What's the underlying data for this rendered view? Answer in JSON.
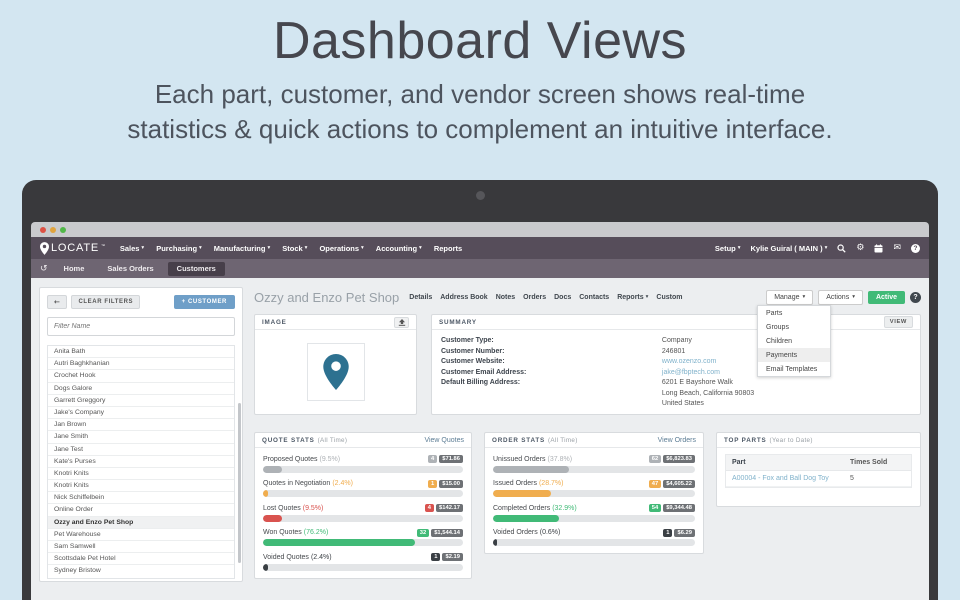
{
  "hero": {
    "title": "Dashboard Views",
    "subtitle_line1": "Each part, customer, and vendor screen shows real-time",
    "subtitle_line2": "statistics & quick actions to complement an intuitive interface."
  },
  "icons": {
    "caret": "▾",
    "undo": "↺",
    "gear": "⚙",
    "envelope": "✉",
    "back": "←",
    "question": "?",
    "trademark": "™"
  },
  "navbar": {
    "brand": "LOCATE",
    "menus": [
      "Sales",
      "Purchasing",
      "Manufacturing",
      "Stock",
      "Operations",
      "Accounting",
      "Reports"
    ],
    "setup": "Setup",
    "user": "Kylie Guiral ( MAIN )"
  },
  "breadcrumbs": {
    "items": [
      "Home",
      "Sales Orders",
      "Customers"
    ]
  },
  "sidebar": {
    "clear_filters": "CLEAR FILTERS",
    "add_customer": "+ CUSTOMER",
    "filter_placeholder": "Filter Name",
    "customers": [
      "Anita Bath",
      "Autri Baghkhanian",
      "Crochet Hook",
      "Dogs Galore",
      "Garrett Greggory",
      "Jake's Company",
      "Jan Brown",
      "Jane Smith",
      "Jane Test",
      "Kate's Purses",
      "Knotri Knits",
      "Knotri Knits",
      "Nick Schiffelbein",
      "Online Order",
      "Ozzy and Enzo Pet Shop",
      "Pet Warehouse",
      "Sam Samwell",
      "Scottsdale Pet Hotel",
      "Sydney Bristow"
    ],
    "selected_customer": "Ozzy and Enzo Pet Shop"
  },
  "customer_header": {
    "name": "Ozzy and Enzo Pet Shop",
    "tabs": [
      "Details",
      "Address Book",
      "Notes",
      "Orders",
      "Docs",
      "Contacts",
      "Reports",
      "Custom"
    ],
    "manage_label": "Manage",
    "actions_label": "Actions",
    "status": "Active",
    "manage_menu": [
      "Parts",
      "Groups",
      "Children",
      "Payments",
      "Email Templates"
    ]
  },
  "image_panel": {
    "title": "IMAGE"
  },
  "summary": {
    "title": "SUMMARY",
    "view_label": "VIEW",
    "rows": [
      {
        "label": "Customer Type:",
        "value": "Company"
      },
      {
        "label": "Customer Number:",
        "value": "246801"
      },
      {
        "label": "Customer Website:",
        "value": "www.ozenzo.com"
      },
      {
        "label": "Customer Email Address:",
        "value": "jake@fbptech.com"
      },
      {
        "label": "Default Billing Address:",
        "value": "6201 E Bayshore Walk",
        "line2": "Long Beach, California 90803",
        "line3": "United States"
      }
    ]
  },
  "quote_stats": {
    "title": "QUOTE STATS",
    "period": "(All Time)",
    "view_link": "View Quotes",
    "rows": [
      {
        "label": "Proposed Quotes",
        "pct_label": "(9.5%)",
        "pct": 9.5,
        "count": "4",
        "value": "$71.86",
        "color": "#aeb2b6"
      },
      {
        "label": "Quotes in Negotiation",
        "pct_label": "(2.4%)",
        "pct": 2.4,
        "count": "1",
        "value": "$15.00",
        "color": "#f0ad4e"
      },
      {
        "label": "Lost Quotes",
        "pct_label": "(9.5%)",
        "pct": 9.5,
        "count": "4",
        "value": "$142.17",
        "color": "#d9534f"
      },
      {
        "label": "Won Quotes",
        "pct_label": "(76.2%)",
        "pct": 76.2,
        "count": "32",
        "value": "$1,544.14",
        "color": "#41ba77"
      },
      {
        "label": "Voided Quotes",
        "pct_label": "(2.4%)",
        "pct": 2.4,
        "count": "1",
        "value": "$2.19",
        "color": "#3a3f44"
      }
    ]
  },
  "order_stats": {
    "title": "ORDER STATS",
    "period": "(All Time)",
    "view_link": "View Orders",
    "rows": [
      {
        "label": "Unissued Orders",
        "pct_label": "(37.8%)",
        "pct": 37.8,
        "count": "62",
        "value": "$6,823.83",
        "color": "#aeb2b6"
      },
      {
        "label": "Issued Orders",
        "pct_label": "(28.7%)",
        "pct": 28.7,
        "count": "47",
        "value": "$4,605.22",
        "color": "#f0ad4e"
      },
      {
        "label": "Completed Orders",
        "pct_label": "(32.9%)",
        "pct": 32.9,
        "count": "54",
        "value": "$9,344.48",
        "color": "#41ba77"
      },
      {
        "label": "Voided Orders",
        "pct_label": "(0.6%)",
        "pct": 0.6,
        "count": "1",
        "value": "$6.29",
        "color": "#3a3f44"
      }
    ]
  },
  "top_parts": {
    "title": "TOP PARTS",
    "period": "(Year to Date)",
    "columns": [
      "Part",
      "Times Sold"
    ],
    "rows": [
      {
        "part": "A00004 - Fox and Ball Dog Toy",
        "times_sold": "5"
      }
    ]
  },
  "colors": {
    "accent_blue": "#6f9fc8",
    "green": "#41ba77",
    "orange": "#f0ad4e",
    "red": "#d9534f",
    "grey": "#aeb2b6",
    "dark": "#3a3f44",
    "pin_teal": "#2d7190",
    "link": "#80b2cb"
  }
}
